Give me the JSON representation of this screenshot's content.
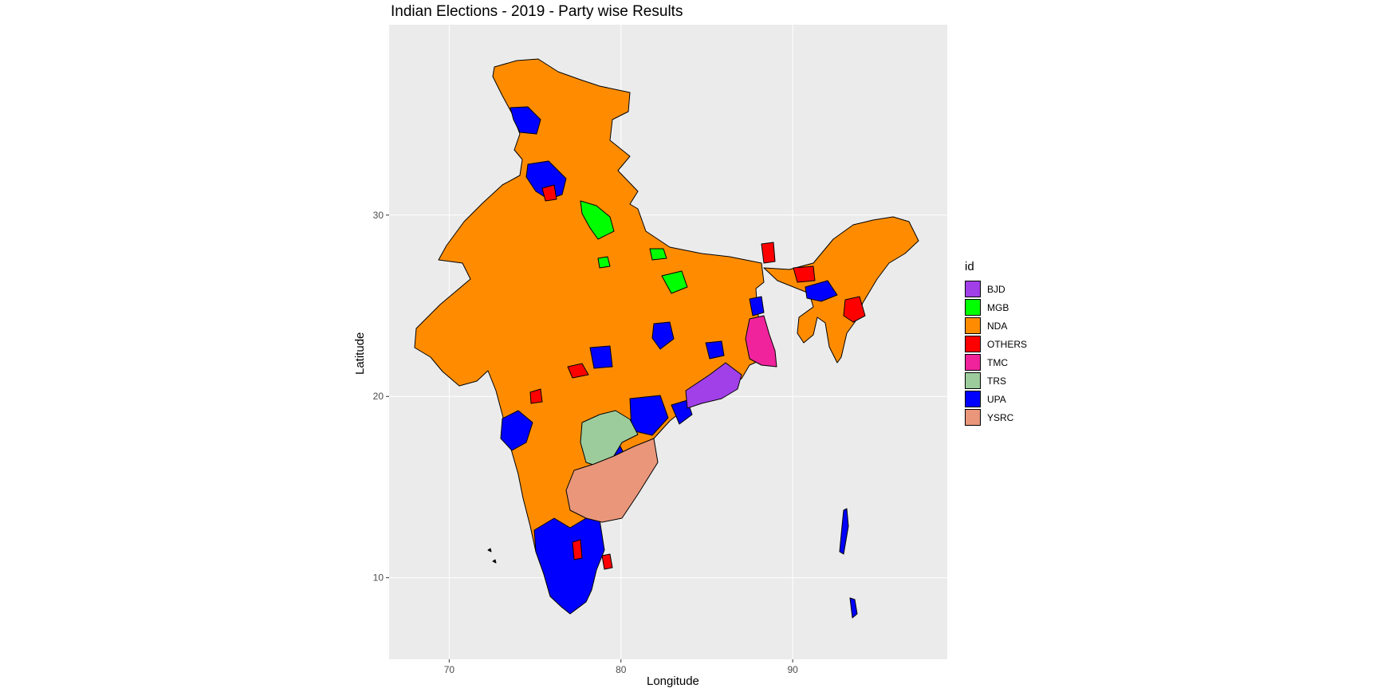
{
  "title": "Indian Elections - 2019 - Party wise Results",
  "xlabel": "Longitude",
  "ylabel": "Latitude",
  "x_ticks": [
    "70",
    "80",
    "90"
  ],
  "y_ticks": [
    "10",
    "20",
    "30"
  ],
  "legend": {
    "title": "id",
    "items": [
      {
        "label": "BJD",
        "color": "#A13FE8"
      },
      {
        "label": "MGB",
        "color": "#00FF00"
      },
      {
        "label": "NDA",
        "color": "#FF8C00"
      },
      {
        "label": "OTHERS",
        "color": "#FF0000"
      },
      {
        "label": "TMC",
        "color": "#F0239C"
      },
      {
        "label": "TRS",
        "color": "#9CCC9C"
      },
      {
        "label": "UPA",
        "color": "#0000FF"
      },
      {
        "label": "YSRC",
        "color": "#E9967A"
      }
    ]
  },
  "colors": {
    "panel_background": "#EBEBEB",
    "gridline": "#FFFFFF",
    "boundary": "#000000"
  },
  "chart_data": {
    "type": "choropleth",
    "title": "Indian Elections - 2019 - Party wise Results",
    "xlabel": "Longitude",
    "ylabel": "Latitude",
    "xlim": [
      66.5,
      99
    ],
    "ylim": [
      5.5,
      40.5
    ],
    "x_ticks": [
      70,
      80,
      90
    ],
    "y_ticks": [
      10,
      20,
      30
    ],
    "grid": true,
    "legend_position": "right",
    "legend_title": "id",
    "categories": [
      "BJD",
      "MGB",
      "NDA",
      "OTHERS",
      "TMC",
      "TRS",
      "UPA",
      "YSRC"
    ]
  }
}
